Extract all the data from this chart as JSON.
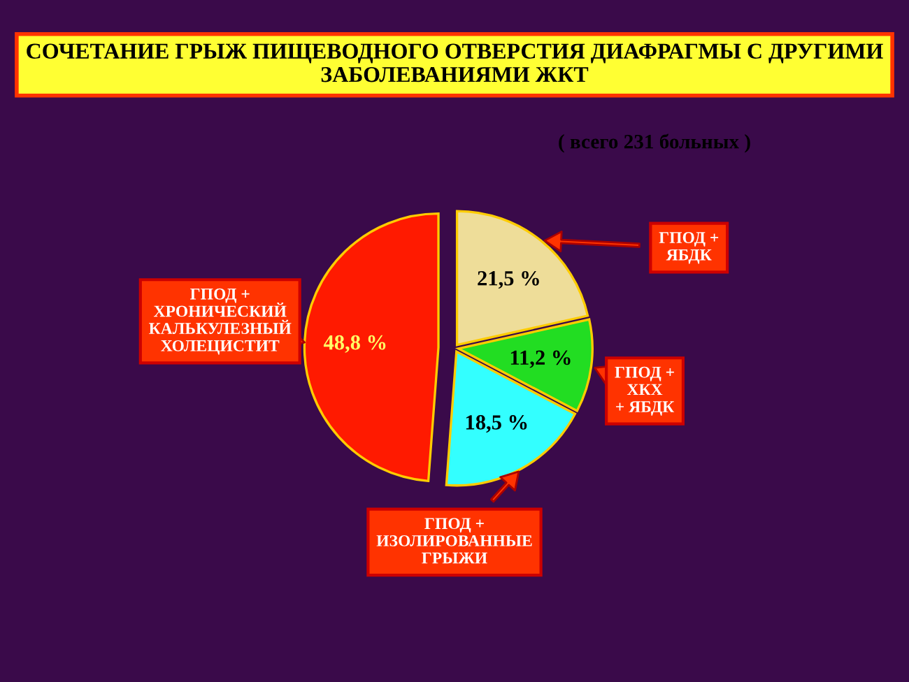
{
  "chart_data": {
    "type": "pie",
    "title": "СОЧЕТАНИЕ ГРЫЖ ПИЩЕВОДНОГО ОТВЕРСТИЯ ДИАФРАГМЫ С ДРУГИМИ ЗАБОЛЕВАНИЯМИ ЖКТ",
    "subtitle": "( всего 231 больных )",
    "categories": [
      "ГПОД + ХРОНИЧЕСКИЙ КАЛЬКУЛЕЗНЫЙ ХОЛЕЦИСТИТ",
      "ГПОД + ИЗОЛИРОВАННЫЕ ГРЫЖИ",
      "ГПОД + ХКХ + ЯБДК",
      "ГПОД + ЯБДК"
    ],
    "values": [
      48.8,
      18.5,
      11.2,
      21.5
    ],
    "value_labels": [
      "48,8 %",
      "18,5 %",
      "11,2 %",
      "21,5 %"
    ],
    "colors": [
      "#ff1a00",
      "#33ffff",
      "#22dd22",
      "#eedd99"
    ],
    "legend": false
  }
}
